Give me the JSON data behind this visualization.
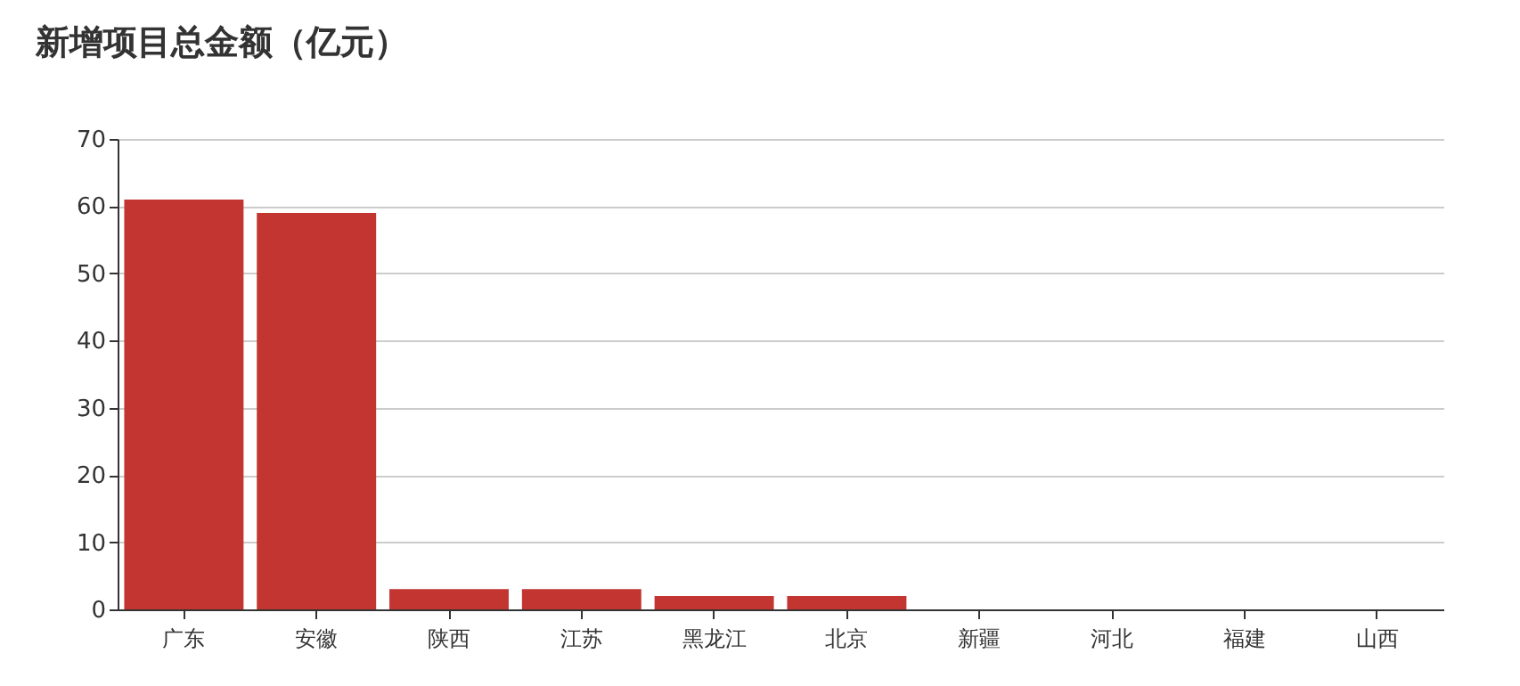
{
  "chart_data": {
    "type": "bar",
    "title": "新增项目总金额（亿元）",
    "categories": [
      "广东",
      "安徽",
      "陕西",
      "江苏",
      "黑龙江",
      "北京",
      "新疆",
      "河北",
      "福建",
      "山西"
    ],
    "values": [
      61,
      59,
      3,
      3,
      2,
      2,
      0,
      0,
      0,
      0
    ],
    "color": "#c23531",
    "ylim": [
      0,
      70
    ],
    "yticks": [
      0,
      10,
      20,
      30,
      40,
      50,
      60,
      70
    ],
    "grid": "y"
  }
}
